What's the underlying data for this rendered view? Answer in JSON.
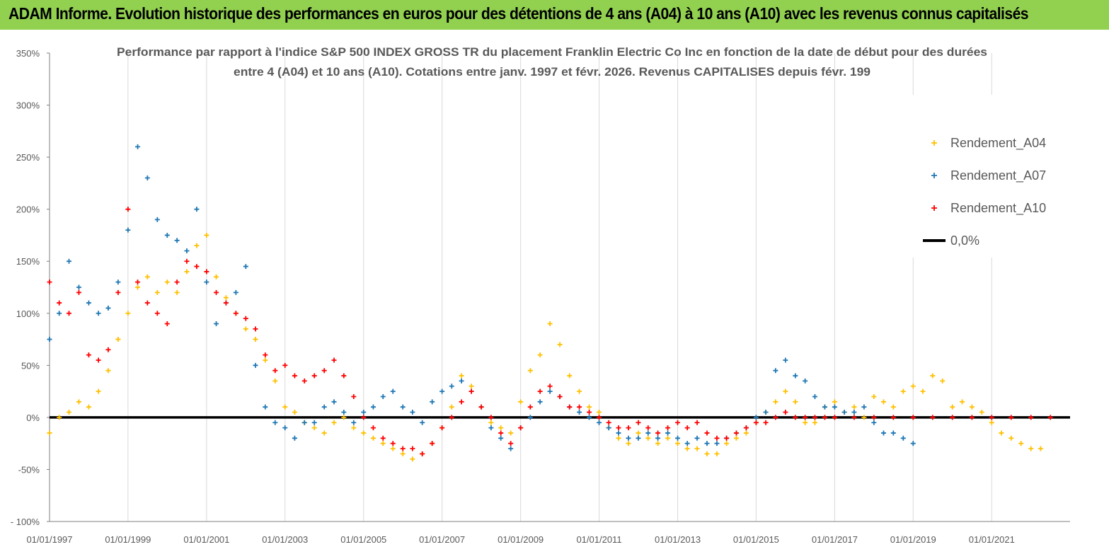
{
  "banner": {
    "title": "ADAM Informe. Evolution historique des performances en euros pour des détentions de 4 ans (A04) à 10 ans (A10) avec les revenus connus capitalisés"
  },
  "colors": {
    "banner": "#92d050",
    "A04": "#ffc000",
    "A07": "#1f77b4",
    "A10": "#ff0000",
    "zero": "#000000"
  },
  "chart_data": {
    "type": "scatter",
    "title_line1": "Performance par rapport à l'indice S&P 500 INDEX GROSS TR  du placement Franklin Electric Co Inc en fonction de la date de début pour des durées",
    "title_line2": "entre 4 (A04) et 10 ans (A10).  Cotations entre janv. 1997 et févr. 2026. Revenus CAPITALISES depuis févr. 199",
    "xlabel": "",
    "ylabel": "",
    "xlim": [
      "1997-01-01",
      "2022-12-31"
    ],
    "ylim": [
      -100,
      350
    ],
    "y_ticks": [
      350,
      300,
      250,
      200,
      150,
      100,
      50,
      0,
      -50,
      -100
    ],
    "y_tick_labels": [
      "350%",
      "300%",
      "250%",
      "200%",
      "150%",
      "100%",
      "50%",
      "0%",
      "-50%",
      "- 100%"
    ],
    "x_ticks": [
      "1997-01-01",
      "1999-01-01",
      "2001-01-01",
      "2003-01-01",
      "2005-01-01",
      "2007-01-01",
      "2009-01-01",
      "2011-01-01",
      "2013-01-01",
      "2015-01-01",
      "2017-01-01",
      "2019-01-01",
      "2021-01-01"
    ],
    "x_tick_labels": [
      "01/01/1997",
      "01/01/1999",
      "01/01/2001",
      "01/01/2003",
      "01/01/2005",
      "01/01/2007",
      "01/01/2009",
      "01/01/2011",
      "01/01/2013",
      "01/01/2015",
      "01/01/2017",
      "01/01/2019",
      "01/01/2021"
    ],
    "grid": "vertical",
    "legend_position": "top-right",
    "series": [
      {
        "name": "Rendement_A04",
        "marker": "plus",
        "x": [
          "1997-01-01",
          "1997-04-01",
          "1997-07-01",
          "1997-10-01",
          "1998-01-01",
          "1998-04-01",
          "1998-07-01",
          "1998-10-01",
          "1999-01-01",
          "1999-04-01",
          "1999-07-01",
          "1999-10-01",
          "2000-01-01",
          "2000-04-01",
          "2000-07-01",
          "2000-10-01",
          "2001-01-01",
          "2001-04-01",
          "2001-07-01",
          "2001-10-01",
          "2002-01-01",
          "2002-04-01",
          "2002-07-01",
          "2002-10-01",
          "2003-01-01",
          "2003-04-01",
          "2003-07-01",
          "2003-10-01",
          "2004-01-01",
          "2004-04-01",
          "2004-07-01",
          "2004-10-01",
          "2005-01-01",
          "2005-04-01",
          "2005-07-01",
          "2005-10-01",
          "2006-01-01",
          "2006-04-01",
          "2006-07-01",
          "2006-10-01",
          "2007-01-01",
          "2007-04-01",
          "2007-07-01",
          "2007-10-01",
          "2008-01-01",
          "2008-04-01",
          "2008-07-01",
          "2008-10-01",
          "2009-01-01",
          "2009-04-01",
          "2009-07-01",
          "2009-10-01",
          "2010-01-01",
          "2010-04-01",
          "2010-07-01",
          "2010-10-01",
          "2011-01-01",
          "2011-04-01",
          "2011-07-01",
          "2011-10-01",
          "2012-01-01",
          "2012-04-01",
          "2012-07-01",
          "2012-10-01",
          "2013-01-01",
          "2013-04-01",
          "2013-07-01",
          "2013-10-01",
          "2014-01-01",
          "2014-04-01",
          "2014-07-01",
          "2014-10-01",
          "2015-01-01",
          "2015-04-01",
          "2015-07-01",
          "2015-10-01",
          "2016-01-01",
          "2016-04-01",
          "2016-07-01",
          "2016-10-01",
          "2017-01-01",
          "2017-04-01",
          "2017-07-01",
          "2017-10-01",
          "2018-01-01",
          "2018-04-01",
          "2018-07-01",
          "2018-10-01",
          "2019-01-01",
          "2019-04-01",
          "2019-07-01",
          "2019-10-01",
          "2020-01-01",
          "2020-04-01",
          "2020-07-01",
          "2020-10-01",
          "2021-01-01",
          "2021-04-01",
          "2021-07-01",
          "2021-10-01",
          "2022-01-01",
          "2022-04-01"
        ],
        "values": [
          -15,
          0,
          5,
          15,
          10,
          25,
          45,
          75,
          100,
          125,
          135,
          120,
          130,
          120,
          140,
          165,
          175,
          135,
          115,
          100,
          85,
          75,
          55,
          35,
          10,
          5,
          -5,
          -10,
          -15,
          -5,
          0,
          -10,
          -15,
          -20,
          -25,
          -30,
          -35,
          -40,
          -35,
          -25,
          -10,
          10,
          40,
          30,
          10,
          -5,
          -10,
          -15,
          15,
          45,
          60,
          90,
          70,
          40,
          25,
          10,
          5,
          -10,
          -20,
          -25,
          -15,
          -20,
          -25,
          -20,
          -25,
          -30,
          -30,
          -35,
          -35,
          -25,
          -20,
          -15,
          -5,
          5,
          15,
          25,
          15,
          -5,
          -5,
          10,
          15,
          5,
          10,
          0,
          20,
          15,
          10,
          25,
          30,
          25,
          40,
          35,
          10,
          15,
          10,
          5,
          -5,
          -15,
          -20,
          -25,
          -30,
          -30
        ]
      },
      {
        "name": "Rendement_A07",
        "marker": "plus",
        "x": [
          "1997-01-01",
          "1997-04-01",
          "1997-07-01",
          "1997-10-01",
          "1998-01-01",
          "1998-04-01",
          "1998-07-01",
          "1998-10-01",
          "1999-01-01",
          "1999-04-01",
          "1999-07-01",
          "1999-10-01",
          "2000-01-01",
          "2000-04-01",
          "2000-07-01",
          "2000-10-01",
          "2001-01-01",
          "2001-04-01",
          "2001-07-01",
          "2001-10-01",
          "2002-01-01",
          "2002-04-01",
          "2002-07-01",
          "2002-10-01",
          "2003-01-01",
          "2003-04-01",
          "2003-07-01",
          "2003-10-01",
          "2004-01-01",
          "2004-04-01",
          "2004-07-01",
          "2004-10-01",
          "2005-01-01",
          "2005-04-01",
          "2005-07-01",
          "2005-10-01",
          "2006-01-01",
          "2006-04-01",
          "2006-07-01",
          "2006-10-01",
          "2007-01-01",
          "2007-04-01",
          "2007-07-01",
          "2007-10-01",
          "2008-01-01",
          "2008-04-01",
          "2008-07-01",
          "2008-10-01",
          "2009-01-01",
          "2009-04-01",
          "2009-07-01",
          "2009-10-01",
          "2010-01-01",
          "2010-04-01",
          "2010-07-01",
          "2010-10-01",
          "2011-01-01",
          "2011-04-01",
          "2011-07-01",
          "2011-10-01",
          "2012-01-01",
          "2012-04-01",
          "2012-07-01",
          "2012-10-01",
          "2013-01-01",
          "2013-04-01",
          "2013-07-01",
          "2013-10-01",
          "2014-01-01",
          "2014-04-01",
          "2014-07-01",
          "2014-10-01",
          "2015-01-01",
          "2015-04-01",
          "2015-07-01",
          "2015-10-01",
          "2016-01-01",
          "2016-04-01",
          "2016-07-01",
          "2016-10-01",
          "2017-01-01",
          "2017-04-01",
          "2017-07-01",
          "2017-10-01",
          "2018-01-01",
          "2018-04-01",
          "2018-07-01",
          "2018-10-01",
          "2019-01-01"
        ],
        "values": [
          75,
          100,
          150,
          125,
          110,
          100,
          105,
          130,
          180,
          260,
          230,
          190,
          175,
          170,
          160,
          200,
          130,
          90,
          110,
          120,
          145,
          50,
          10,
          -5,
          -10,
          -20,
          -5,
          -5,
          10,
          15,
          5,
          -5,
          5,
          10,
          20,
          25,
          10,
          5,
          -5,
          15,
          25,
          30,
          35,
          25,
          10,
          -10,
          -20,
          -30,
          -10,
          0,
          15,
          25,
          20,
          10,
          5,
          0,
          -5,
          -10,
          -15,
          -20,
          -20,
          -15,
          -20,
          -15,
          -20,
          -25,
          -20,
          -25,
          -25,
          -20,
          -15,
          -10,
          0,
          5,
          45,
          55,
          40,
          35,
          20,
          10,
          10,
          5,
          5,
          10,
          -5,
          -15,
          -15,
          -20,
          -25
        ]
      },
      {
        "name": "Rendement_A10",
        "marker": "plus",
        "x": [
          "1997-01-01",
          "1997-04-01",
          "1997-07-01",
          "1997-10-01",
          "1998-01-01",
          "1998-04-01",
          "1998-07-01",
          "1998-10-01",
          "1999-01-01",
          "1999-04-01",
          "1999-07-01",
          "1999-10-01",
          "2000-01-01",
          "2000-04-01",
          "2000-07-01",
          "2000-10-01",
          "2001-01-01",
          "2001-04-01",
          "2001-07-01",
          "2001-10-01",
          "2002-01-01",
          "2002-04-01",
          "2002-07-01",
          "2002-10-01",
          "2003-01-01",
          "2003-04-01",
          "2003-07-01",
          "2003-10-01",
          "2004-01-01",
          "2004-04-01",
          "2004-07-01",
          "2004-10-01",
          "2005-01-01",
          "2005-04-01",
          "2005-07-01",
          "2005-10-01",
          "2006-01-01",
          "2006-04-01",
          "2006-07-01",
          "2006-10-01",
          "2007-01-01",
          "2007-04-01",
          "2007-07-01",
          "2007-10-01",
          "2008-01-01",
          "2008-04-01",
          "2008-07-01",
          "2008-10-01",
          "2009-01-01",
          "2009-04-01",
          "2009-07-01",
          "2009-10-01",
          "2010-01-01",
          "2010-04-01",
          "2010-07-01",
          "2010-10-01",
          "2011-01-01",
          "2011-04-01",
          "2011-07-01",
          "2011-10-01",
          "2012-01-01",
          "2012-04-01",
          "2012-07-01",
          "2012-10-01",
          "2013-01-01",
          "2013-04-01",
          "2013-07-01",
          "2013-10-01",
          "2014-01-01",
          "2014-04-01",
          "2014-07-01",
          "2014-10-01",
          "2015-01-01",
          "2015-04-01",
          "2015-07-01",
          "2015-10-01",
          "2016-01-01",
          "2016-04-01",
          "2016-07-01",
          "2016-10-01",
          "2017-01-01",
          "2017-07-01",
          "2018-01-01",
          "2018-07-01",
          "2019-01-01",
          "2019-07-01",
          "2020-01-01",
          "2020-07-01",
          "2021-01-01",
          "2021-07-01",
          "2022-01-01",
          "2022-07-01"
        ],
        "values": [
          130,
          110,
          100,
          120,
          60,
          55,
          65,
          120,
          200,
          130,
          110,
          100,
          90,
          130,
          150,
          145,
          140,
          120,
          110,
          100,
          95,
          85,
          60,
          45,
          50,
          40,
          35,
          40,
          45,
          55,
          40,
          20,
          0,
          -10,
          -20,
          -25,
          -30,
          -30,
          -35,
          -25,
          -10,
          0,
          15,
          25,
          10,
          0,
          -15,
          -25,
          -10,
          10,
          25,
          30,
          20,
          10,
          10,
          5,
          0,
          -5,
          -10,
          -10,
          -5,
          -10,
          -15,
          -10,
          -5,
          -10,
          -5,
          -15,
          -20,
          -20,
          -15,
          -10,
          -5,
          -5,
          0,
          5,
          0,
          0,
          0,
          0,
          0,
          0,
          0,
          0,
          0,
          0,
          0,
          0,
          0,
          0,
          0,
          0
        ]
      },
      {
        "name": "0,0%",
        "type": "line",
        "x": [
          "1997-01-01",
          "2022-12-31"
        ],
        "values": [
          0,
          0
        ]
      }
    ]
  }
}
